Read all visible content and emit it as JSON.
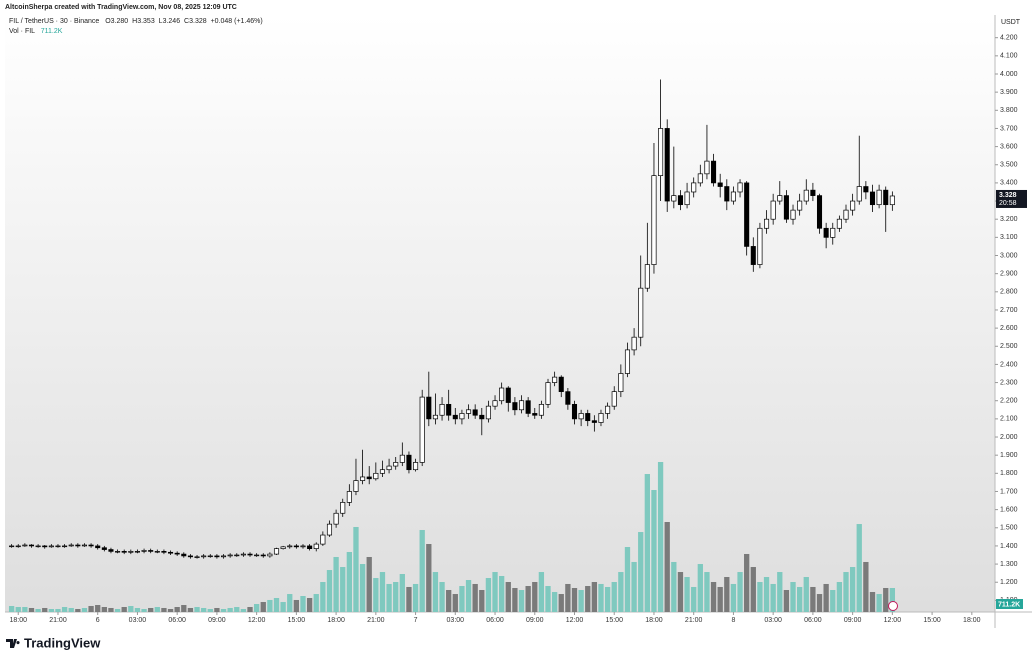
{
  "header": {
    "credit": "AltcoinSherpa created with TradingView.com, Nov 08, 2025 12:09 UTC"
  },
  "legend": {
    "symbol": "FIL / TetherUS · 30 · Binance",
    "open": "O3.280",
    "high": "H3.353",
    "low": "L3.246",
    "close": "C3.328",
    "change": "+0.048 (+1.46%)",
    "volume_name": "Vol · FIL",
    "volume": "711.2K"
  },
  "chart_data": {
    "type": "candlestick",
    "open": [
      1.4,
      1.4,
      1.4,
      1.405,
      1.4,
      1.4,
      1.395,
      1.4,
      1.4,
      1.4,
      1.405,
      1.4,
      1.405,
      1.4,
      1.39,
      1.38,
      1.37,
      1.37,
      1.365,
      1.37,
      1.37,
      1.375,
      1.37,
      1.37,
      1.365,
      1.36,
      1.355,
      1.345,
      1.34,
      1.34,
      1.345,
      1.345,
      1.34,
      1.345,
      1.35,
      1.35,
      1.355,
      1.35,
      1.35,
      1.345,
      1.355,
      1.385,
      1.395,
      1.4,
      1.395,
      1.4,
      1.385,
      1.41,
      1.46,
      1.52,
      1.58,
      1.64,
      1.7,
      1.76,
      1.78,
      1.77,
      1.8,
      1.82,
      1.84,
      1.86,
      1.9,
      1.82,
      1.86,
      2.22,
      2.1,
      2.12,
      2.18,
      2.12,
      2.1,
      2.13,
      2.15,
      2.12,
      2.1,
      2.17,
      2.2,
      2.27,
      2.19,
      2.15,
      2.2,
      2.13,
      2.12,
      2.18,
      2.3,
      2.33,
      2.25,
      2.18,
      2.1,
      2.13,
      2.09,
      2.08,
      2.13,
      2.17,
      2.25,
      2.35,
      2.48,
      2.55,
      2.82,
      2.95,
      3.44,
      3.7,
      3.3,
      3.33,
      3.28,
      3.35,
      3.4,
      3.45,
      3.52,
      3.4,
      3.38,
      3.3,
      3.35,
      3.4,
      3.05,
      2.95,
      3.15,
      3.2,
      3.3,
      3.33,
      3.2,
      3.25,
      3.3,
      3.36,
      3.33,
      3.15,
      3.1,
      3.15,
      3.2,
      3.25,
      3.3,
      3.38,
      3.35,
      3.28,
      3.36,
      3.28
    ],
    "high": [
      1.41,
      1.41,
      1.415,
      1.41,
      1.41,
      1.405,
      1.41,
      1.41,
      1.41,
      1.415,
      1.415,
      1.415,
      1.415,
      1.41,
      1.4,
      1.39,
      1.38,
      1.38,
      1.38,
      1.38,
      1.385,
      1.385,
      1.38,
      1.38,
      1.375,
      1.37,
      1.365,
      1.355,
      1.35,
      1.355,
      1.355,
      1.355,
      1.355,
      1.36,
      1.36,
      1.365,
      1.365,
      1.36,
      1.36,
      1.365,
      1.39,
      1.4,
      1.41,
      1.41,
      1.41,
      1.41,
      1.42,
      1.48,
      1.54,
      1.6,
      1.66,
      1.74,
      1.88,
      1.93,
      1.84,
      1.86,
      1.87,
      1.88,
      1.89,
      1.97,
      1.92,
      1.88,
      2.26,
      2.36,
      2.24,
      2.22,
      2.26,
      2.16,
      2.15,
      2.18,
      2.18,
      2.16,
      2.2,
      2.23,
      2.3,
      2.28,
      2.22,
      2.23,
      2.22,
      2.16,
      2.2,
      2.32,
      2.36,
      2.34,
      2.27,
      2.2,
      2.15,
      2.15,
      2.12,
      2.15,
      2.19,
      2.28,
      2.4,
      2.52,
      2.6,
      3.0,
      3.18,
      3.62,
      3.97,
      3.75,
      3.6,
      3.36,
      3.4,
      3.43,
      3.5,
      3.72,
      3.56,
      3.45,
      3.42,
      3.38,
      3.42,
      3.41,
      3.1,
      3.18,
      3.25,
      3.34,
      3.41,
      3.36,
      3.28,
      3.34,
      3.42,
      3.4,
      3.34,
      3.18,
      3.18,
      3.22,
      3.28,
      3.34,
      3.66,
      3.41,
      3.39,
      3.39,
      3.38,
      3.353
    ],
    "low": [
      1.39,
      1.39,
      1.395,
      1.39,
      1.39,
      1.385,
      1.39,
      1.39,
      1.39,
      1.395,
      1.39,
      1.395,
      1.39,
      1.38,
      1.37,
      1.36,
      1.36,
      1.355,
      1.355,
      1.36,
      1.36,
      1.36,
      1.36,
      1.355,
      1.35,
      1.345,
      1.335,
      1.33,
      1.33,
      1.33,
      1.335,
      1.33,
      1.33,
      1.335,
      1.34,
      1.34,
      1.34,
      1.34,
      1.335,
      1.335,
      1.35,
      1.38,
      1.385,
      1.385,
      1.385,
      1.375,
      1.37,
      1.4,
      1.45,
      1.5,
      1.56,
      1.62,
      1.68,
      1.74,
      1.74,
      1.76,
      1.78,
      1.8,
      1.82,
      1.84,
      1.8,
      1.81,
      1.84,
      2.06,
      2.07,
      2.09,
      2.09,
      2.07,
      2.07,
      2.1,
      2.1,
      2.01,
      2.08,
      2.15,
      2.18,
      2.14,
      2.12,
      2.13,
      2.11,
      2.1,
      2.1,
      2.16,
      2.28,
      2.22,
      2.15,
      2.07,
      2.06,
      2.06,
      2.03,
      2.06,
      2.1,
      2.15,
      2.22,
      2.33,
      2.45,
      2.5,
      2.8,
      2.9,
      3.3,
      3.24,
      3.26,
      3.25,
      3.26,
      3.32,
      3.38,
      3.42,
      3.38,
      3.32,
      3.25,
      3.28,
      3.32,
      3.0,
      2.91,
      2.93,
      3.12,
      3.17,
      3.28,
      3.18,
      3.17,
      3.22,
      3.28,
      3.3,
      3.12,
      3.04,
      3.06,
      3.13,
      3.18,
      3.22,
      3.28,
      3.31,
      3.24,
      3.26,
      3.13,
      3.246
    ],
    "close": [
      1.4,
      1.4,
      1.405,
      1.4,
      1.4,
      1.395,
      1.4,
      1.4,
      1.4,
      1.405,
      1.4,
      1.405,
      1.4,
      1.39,
      1.38,
      1.37,
      1.37,
      1.365,
      1.37,
      1.37,
      1.375,
      1.37,
      1.37,
      1.365,
      1.36,
      1.355,
      1.345,
      1.34,
      1.34,
      1.345,
      1.345,
      1.34,
      1.345,
      1.35,
      1.35,
      1.355,
      1.35,
      1.35,
      1.345,
      1.355,
      1.385,
      1.395,
      1.4,
      1.395,
      1.4,
      1.385,
      1.41,
      1.46,
      1.52,
      1.58,
      1.64,
      1.7,
      1.76,
      1.78,
      1.77,
      1.8,
      1.82,
      1.84,
      1.86,
      1.9,
      1.82,
      1.86,
      2.22,
      2.1,
      2.12,
      2.18,
      2.12,
      2.1,
      2.13,
      2.15,
      2.12,
      2.1,
      2.17,
      2.2,
      2.27,
      2.19,
      2.15,
      2.2,
      2.13,
      2.12,
      2.18,
      2.3,
      2.33,
      2.25,
      2.18,
      2.1,
      2.13,
      2.09,
      2.08,
      2.13,
      2.17,
      2.25,
      2.35,
      2.48,
      2.55,
      2.82,
      2.95,
      3.44,
      3.7,
      3.3,
      3.33,
      3.28,
      3.35,
      3.4,
      3.45,
      3.52,
      3.4,
      3.38,
      3.3,
      3.35,
      3.4,
      3.05,
      2.95,
      3.15,
      3.2,
      3.3,
      3.33,
      3.2,
      3.25,
      3.3,
      3.36,
      3.33,
      3.15,
      3.1,
      3.15,
      3.2,
      3.25,
      3.3,
      3.38,
      3.35,
      3.28,
      3.36,
      3.28,
      3.328
    ],
    "volume": [
      178000,
      148000,
      148000,
      119000,
      89000,
      119000,
      89000,
      89000,
      148000,
      119000,
      89000,
      119000,
      178000,
      207000,
      148000,
      119000,
      89000,
      148000,
      178000,
      119000,
      89000,
      119000,
      148000,
      119000,
      89000,
      148000,
      207000,
      119000,
      148000,
      119000,
      89000,
      119000,
      89000,
      119000,
      148000,
      89000,
      148000,
      237000,
      296000,
      356000,
      415000,
      296000,
      533000,
      356000,
      474000,
      415000,
      533000,
      889000,
      1244000,
      1630000,
      1333000,
      1778000,
      2519000,
      1422000,
      1630000,
      1007000,
      1185000,
      830000,
      889000,
      1126000,
      741000,
      830000,
      2430000,
      2015000,
      1185000,
      889000,
      652000,
      533000,
      770000,
      948000,
      830000,
      652000,
      1007000,
      1185000,
      1067000,
      889000,
      711000,
      652000,
      770000,
      889000,
      1185000,
      770000,
      593000,
      533000,
      830000,
      711000,
      652000,
      770000,
      889000,
      830000,
      741000,
      889000,
      1185000,
      1926000,
      1482000,
      2370000,
      4089000,
      3615000,
      4445000,
      2667000,
      1482000,
      1185000,
      1037000,
      741000,
      1422000,
      1185000,
      889000,
      741000,
      1037000,
      830000,
      1185000,
      1719000,
      1333000,
      889000,
      1037000,
      830000,
      1185000,
      652000,
      889000,
      741000,
      1037000,
      741000,
      533000,
      830000,
      652000,
      889000,
      1185000,
      1333000,
      2607000,
      1482000,
      593000,
      533000,
      711000,
      711200
    ],
    "up_color": "#ffffff",
    "down_color": "#000000",
    "volume_up_color": "#7fc9bf",
    "volume_down_color": "#7a7a7a",
    "y_axis_title": "USDT",
    "countdown": "20:58",
    "ylim": [
      1.036,
      4.325
    ],
    "yticks": [
      {
        "value": 1.1,
        "label": "1.100"
      },
      {
        "value": 1.2,
        "label": "1.200"
      },
      {
        "value": 1.3,
        "label": "1.300"
      },
      {
        "value": 1.4,
        "label": "1.400"
      },
      {
        "value": 1.5,
        "label": "1.500"
      },
      {
        "value": 1.6,
        "label": "1.600"
      },
      {
        "value": 1.7,
        "label": "1.700"
      },
      {
        "value": 1.8,
        "label": "1.800"
      },
      {
        "value": 1.9,
        "label": "1.900"
      },
      {
        "value": 2.0,
        "label": "2.000"
      },
      {
        "value": 2.1,
        "label": "2.100"
      },
      {
        "value": 2.2,
        "label": "2.200"
      },
      {
        "value": 2.3,
        "label": "2.300"
      },
      {
        "value": 2.4,
        "label": "2.400"
      },
      {
        "value": 2.5,
        "label": "2.500"
      },
      {
        "value": 2.6,
        "label": "2.600"
      },
      {
        "value": 2.7,
        "label": "2.700"
      },
      {
        "value": 2.8,
        "label": "2.800"
      },
      {
        "value": 2.9,
        "label": "2.900"
      },
      {
        "value": 3.0,
        "label": "3.000"
      },
      {
        "value": 3.1,
        "label": "3.100"
      },
      {
        "value": 3.2,
        "label": "3.200"
      },
      {
        "value": 3.3,
        "label": "3.300"
      },
      {
        "value": 3.4,
        "label": "3.400"
      },
      {
        "value": 3.5,
        "label": "3.500"
      },
      {
        "value": 3.6,
        "label": "3.600"
      },
      {
        "value": 3.7,
        "label": "3.700"
      },
      {
        "value": 3.8,
        "label": "3.800"
      },
      {
        "value": 3.9,
        "label": "3.900"
      },
      {
        "value": 4.0,
        "label": "4.000"
      },
      {
        "value": 4.1,
        "label": "4.100"
      },
      {
        "value": 4.2,
        "label": "4.200"
      }
    ],
    "xlim": [
      -1,
      148.5
    ],
    "xticks": [
      {
        "value": 1,
        "label": "18:00"
      },
      {
        "value": 7,
        "label": "21:00"
      },
      {
        "value": 13,
        "label": "6"
      },
      {
        "value": 19,
        "label": "03:00"
      },
      {
        "value": 25,
        "label": "06:00"
      },
      {
        "value": 31,
        "label": "09:00"
      },
      {
        "value": 37,
        "label": "12:00"
      },
      {
        "value": 43,
        "label": "15:00"
      },
      {
        "value": 49,
        "label": "18:00"
      },
      {
        "value": 55,
        "label": "21:00"
      },
      {
        "value": 61,
        "label": "7"
      },
      {
        "value": 67,
        "label": "03:00"
      },
      {
        "value": 73,
        "label": "06:00"
      },
      {
        "value": 79,
        "label": "09:00"
      },
      {
        "value": 85,
        "label": "12:00"
      },
      {
        "value": 91,
        "label": "15:00"
      },
      {
        "value": 97,
        "label": "18:00"
      },
      {
        "value": 103,
        "label": "21:00"
      },
      {
        "value": 109,
        "label": "8"
      },
      {
        "value": 115,
        "label": "03:00"
      },
      {
        "value": 121,
        "label": "06:00"
      },
      {
        "value": 127,
        "label": "09:00"
      },
      {
        "value": 133,
        "label": "12:00"
      },
      {
        "value": 139,
        "label": "15:00"
      },
      {
        "value": 145,
        "label": "18:00"
      }
    ],
    "grid": false
  },
  "footer": {
    "brand": "TradingView"
  }
}
